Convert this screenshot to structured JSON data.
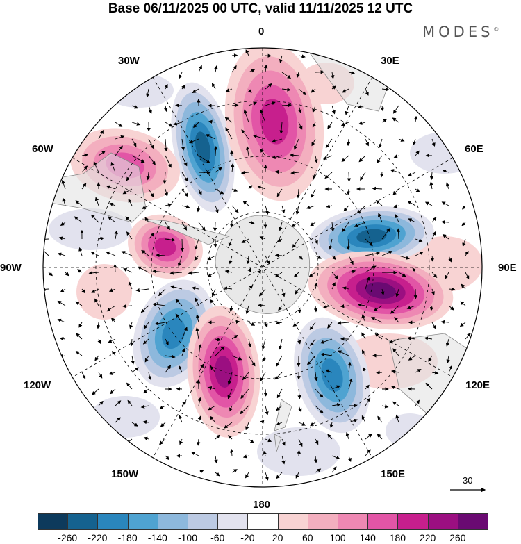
{
  "title": "Base 06/11/2025 00 UTC, valid 11/11/2025 12 UTC",
  "brand": "MODES",
  "brand_mark": "©",
  "longitude_labels": {
    "lon_0": "0",
    "lon_30e": "30E",
    "lon_60e": "60E",
    "lon_90e": "90E",
    "lon_120e": "120E",
    "lon_150e": "150E",
    "lon_180": "180",
    "lon_150w": "150W",
    "lon_120w": "120W",
    "lon_90w": "90W",
    "lon_60w": "60W",
    "lon_30w": "30W"
  },
  "vector_reference": "30",
  "colorbar": {
    "ticks": [
      "-260",
      "-220",
      "-180",
      "-140",
      "-100",
      "-60",
      "-20",
      "20",
      "60",
      "100",
      "140",
      "180",
      "220",
      "260"
    ],
    "colors": [
      "#0d3a5c",
      "#15628f",
      "#2a86bd",
      "#4fa3d1",
      "#8db8dc",
      "#bccae3",
      "#e2e2ee",
      "#ffffff",
      "#f8d3d3",
      "#f3afbf",
      "#ee88b3",
      "#e255a6",
      "#c71f8d",
      "#9b0f81",
      "#6a0a72"
    ]
  },
  "anomaly_centers": [
    {
      "name": "anomaly-south-atlantic-negative",
      "sign": "negative",
      "level": "-220"
    },
    {
      "name": "anomaly-southwest-atlantic-positive",
      "sign": "positive",
      "level": "140"
    },
    {
      "name": "anomaly-greenwich-positive",
      "sign": "positive",
      "level": "180"
    },
    {
      "name": "anomaly-drake-passage-positive",
      "sign": "positive",
      "level": "180"
    },
    {
      "name": "anomaly-indian-ocean-negative",
      "sign": "negative",
      "level": "-220"
    },
    {
      "name": "anomaly-indian-ocean-positive",
      "sign": "positive",
      "level": "260"
    },
    {
      "name": "anomaly-south-pacific-negative-west",
      "sign": "negative",
      "level": "-180"
    },
    {
      "name": "anomaly-south-pacific-positive",
      "sign": "positive",
      "level": "220"
    },
    {
      "name": "anomaly-tasman-negative",
      "sign": "negative",
      "level": "-180"
    }
  ]
}
